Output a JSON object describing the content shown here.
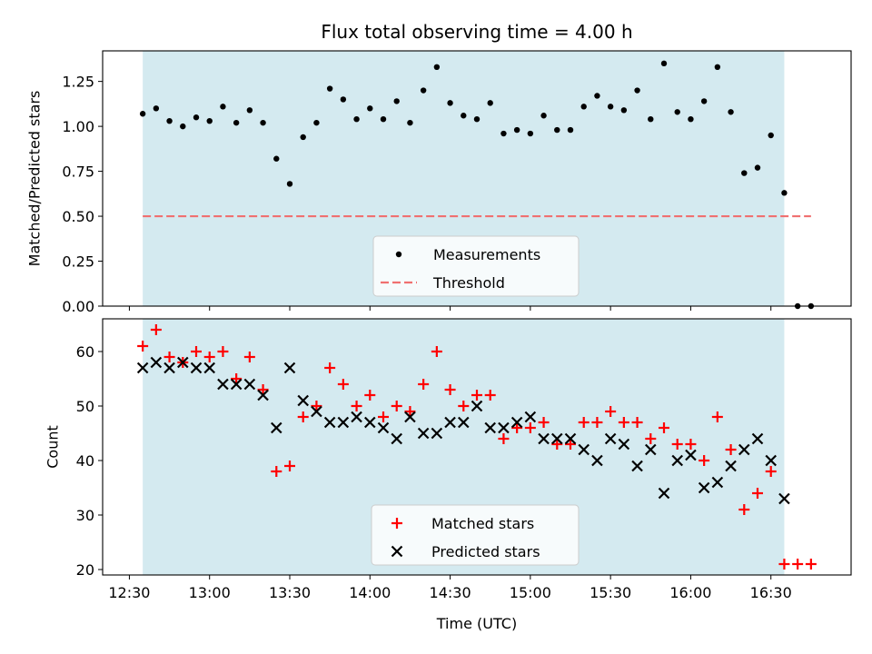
{
  "chart_data": [
    {
      "type": "scatter",
      "title": "Flux total observing time = 4.00 h",
      "ylabel": "Matched/Predicted stars",
      "xlabel": "",
      "ylim": [
        0.0,
        1.42
      ],
      "yticks": [
        "0.00",
        "0.25",
        "0.50",
        "0.75",
        "1.00",
        "1.25"
      ],
      "shaded_span": [
        "12:35",
        "16:35"
      ],
      "shade_color": "#d4eaf0",
      "series": [
        {
          "name": "Measurements",
          "marker": "dot",
          "color": "#000000",
          "x": [
            "12:35",
            "12:40",
            "12:45",
            "12:50",
            "12:55",
            "13:00",
            "13:05",
            "13:10",
            "13:15",
            "13:20",
            "13:25",
            "13:30",
            "13:35",
            "13:40",
            "13:45",
            "13:50",
            "13:55",
            "14:00",
            "14:05",
            "14:10",
            "14:15",
            "14:20",
            "14:25",
            "14:30",
            "14:35",
            "14:40",
            "14:45",
            "14:50",
            "14:55",
            "15:00",
            "15:05",
            "15:10",
            "15:15",
            "15:20",
            "15:25",
            "15:30",
            "15:35",
            "15:40",
            "15:45",
            "15:50",
            "15:55",
            "16:00",
            "16:05",
            "16:10",
            "16:15",
            "16:20",
            "16:25",
            "16:30",
            "16:35",
            "16:40",
            "16:45"
          ],
          "y": [
            1.07,
            1.1,
            1.03,
            1.0,
            1.05,
            1.03,
            1.11,
            1.02,
            1.09,
            1.02,
            0.82,
            0.68,
            0.94,
            1.02,
            1.21,
            1.15,
            1.04,
            1.1,
            1.04,
            1.14,
            1.02,
            1.2,
            1.33,
            1.13,
            1.06,
            1.04,
            1.13,
            0.96,
            0.98,
            0.96,
            1.06,
            0.98,
            0.98,
            1.11,
            1.17,
            1.11,
            1.09,
            1.2,
            1.04,
            1.35,
            1.08,
            1.04,
            1.14,
            1.33,
            1.08,
            0.74,
            0.77,
            0.95,
            0.63,
            0.0,
            0.0
          ]
        },
        {
          "name": "Threshold",
          "marker": "dashed-line",
          "color": "#f07070",
          "x": [
            "12:35",
            "16:45"
          ],
          "y": [
            0.5,
            0.5
          ]
        }
      ],
      "legend": "lower-center"
    },
    {
      "type": "scatter",
      "title": "",
      "xlabel": "Time (UTC)",
      "ylabel": "Count",
      "ylim": [
        19,
        66
      ],
      "yticks": [
        "20",
        "30",
        "40",
        "50",
        "60"
      ],
      "xticks": [
        "12:30",
        "13:00",
        "13:30",
        "14:00",
        "14:30",
        "15:00",
        "15:30",
        "16:00",
        "16:30"
      ],
      "shaded_span": [
        "12:35",
        "16:35"
      ],
      "shade_color": "#d4eaf0",
      "series": [
        {
          "name": "Matched stars",
          "marker": "plus",
          "color": "#ff0000",
          "x": [
            "12:35",
            "12:40",
            "12:45",
            "12:50",
            "12:55",
            "13:00",
            "13:05",
            "13:10",
            "13:15",
            "13:20",
            "13:25",
            "13:30",
            "13:35",
            "13:40",
            "13:45",
            "13:50",
            "13:55",
            "14:00",
            "14:05",
            "14:10",
            "14:15",
            "14:20",
            "14:25",
            "14:30",
            "14:35",
            "14:40",
            "14:45",
            "14:50",
            "14:55",
            "15:00",
            "15:05",
            "15:10",
            "15:15",
            "15:20",
            "15:25",
            "15:30",
            "15:35",
            "15:40",
            "15:45",
            "15:50",
            "15:55",
            "16:00",
            "16:05",
            "16:10",
            "16:15",
            "16:20",
            "16:25",
            "16:30",
            "16:35",
            "16:40",
            "16:45"
          ],
          "y": [
            61,
            64,
            59,
            58,
            60,
            59,
            60,
            55,
            59,
            53,
            38,
            39,
            48,
            50,
            57,
            54,
            50,
            52,
            48,
            50,
            49,
            54,
            60,
            53,
            50,
            52,
            52,
            44,
            46,
            46,
            47,
            43,
            43,
            47,
            47,
            49,
            47,
            47,
            44,
            46,
            43,
            43,
            40,
            48,
            42,
            31,
            34,
            38,
            21,
            21,
            21
          ]
        },
        {
          "name": "Predicted stars",
          "marker": "x",
          "color": "#000000",
          "x": [
            "12:35",
            "12:40",
            "12:45",
            "12:50",
            "12:55",
            "13:00",
            "13:05",
            "13:10",
            "13:15",
            "13:20",
            "13:25",
            "13:30",
            "13:35",
            "13:40",
            "13:45",
            "13:50",
            "13:55",
            "14:00",
            "14:05",
            "14:10",
            "14:15",
            "14:20",
            "14:25",
            "14:30",
            "14:35",
            "14:40",
            "14:45",
            "14:50",
            "14:55",
            "15:00",
            "15:05",
            "15:10",
            "15:15",
            "15:20",
            "15:25",
            "15:30",
            "15:35",
            "15:40",
            "15:45",
            "15:50",
            "15:55",
            "16:00",
            "16:05",
            "16:10",
            "16:15",
            "16:20",
            "16:25",
            "16:30",
            "16:35"
          ],
          "y": [
            57,
            58,
            57,
            58,
            57,
            57,
            54,
            54,
            54,
            52,
            46,
            57,
            51,
            49,
            47,
            47,
            48,
            47,
            46,
            44,
            48,
            45,
            45,
            47,
            47,
            50,
            46,
            46,
            47,
            48,
            44,
            44,
            44,
            42,
            40,
            44,
            43,
            39,
            42,
            34,
            40,
            41,
            35,
            36,
            39,
            42,
            44,
            40,
            33
          ]
        }
      ],
      "legend": "lower-center"
    }
  ]
}
